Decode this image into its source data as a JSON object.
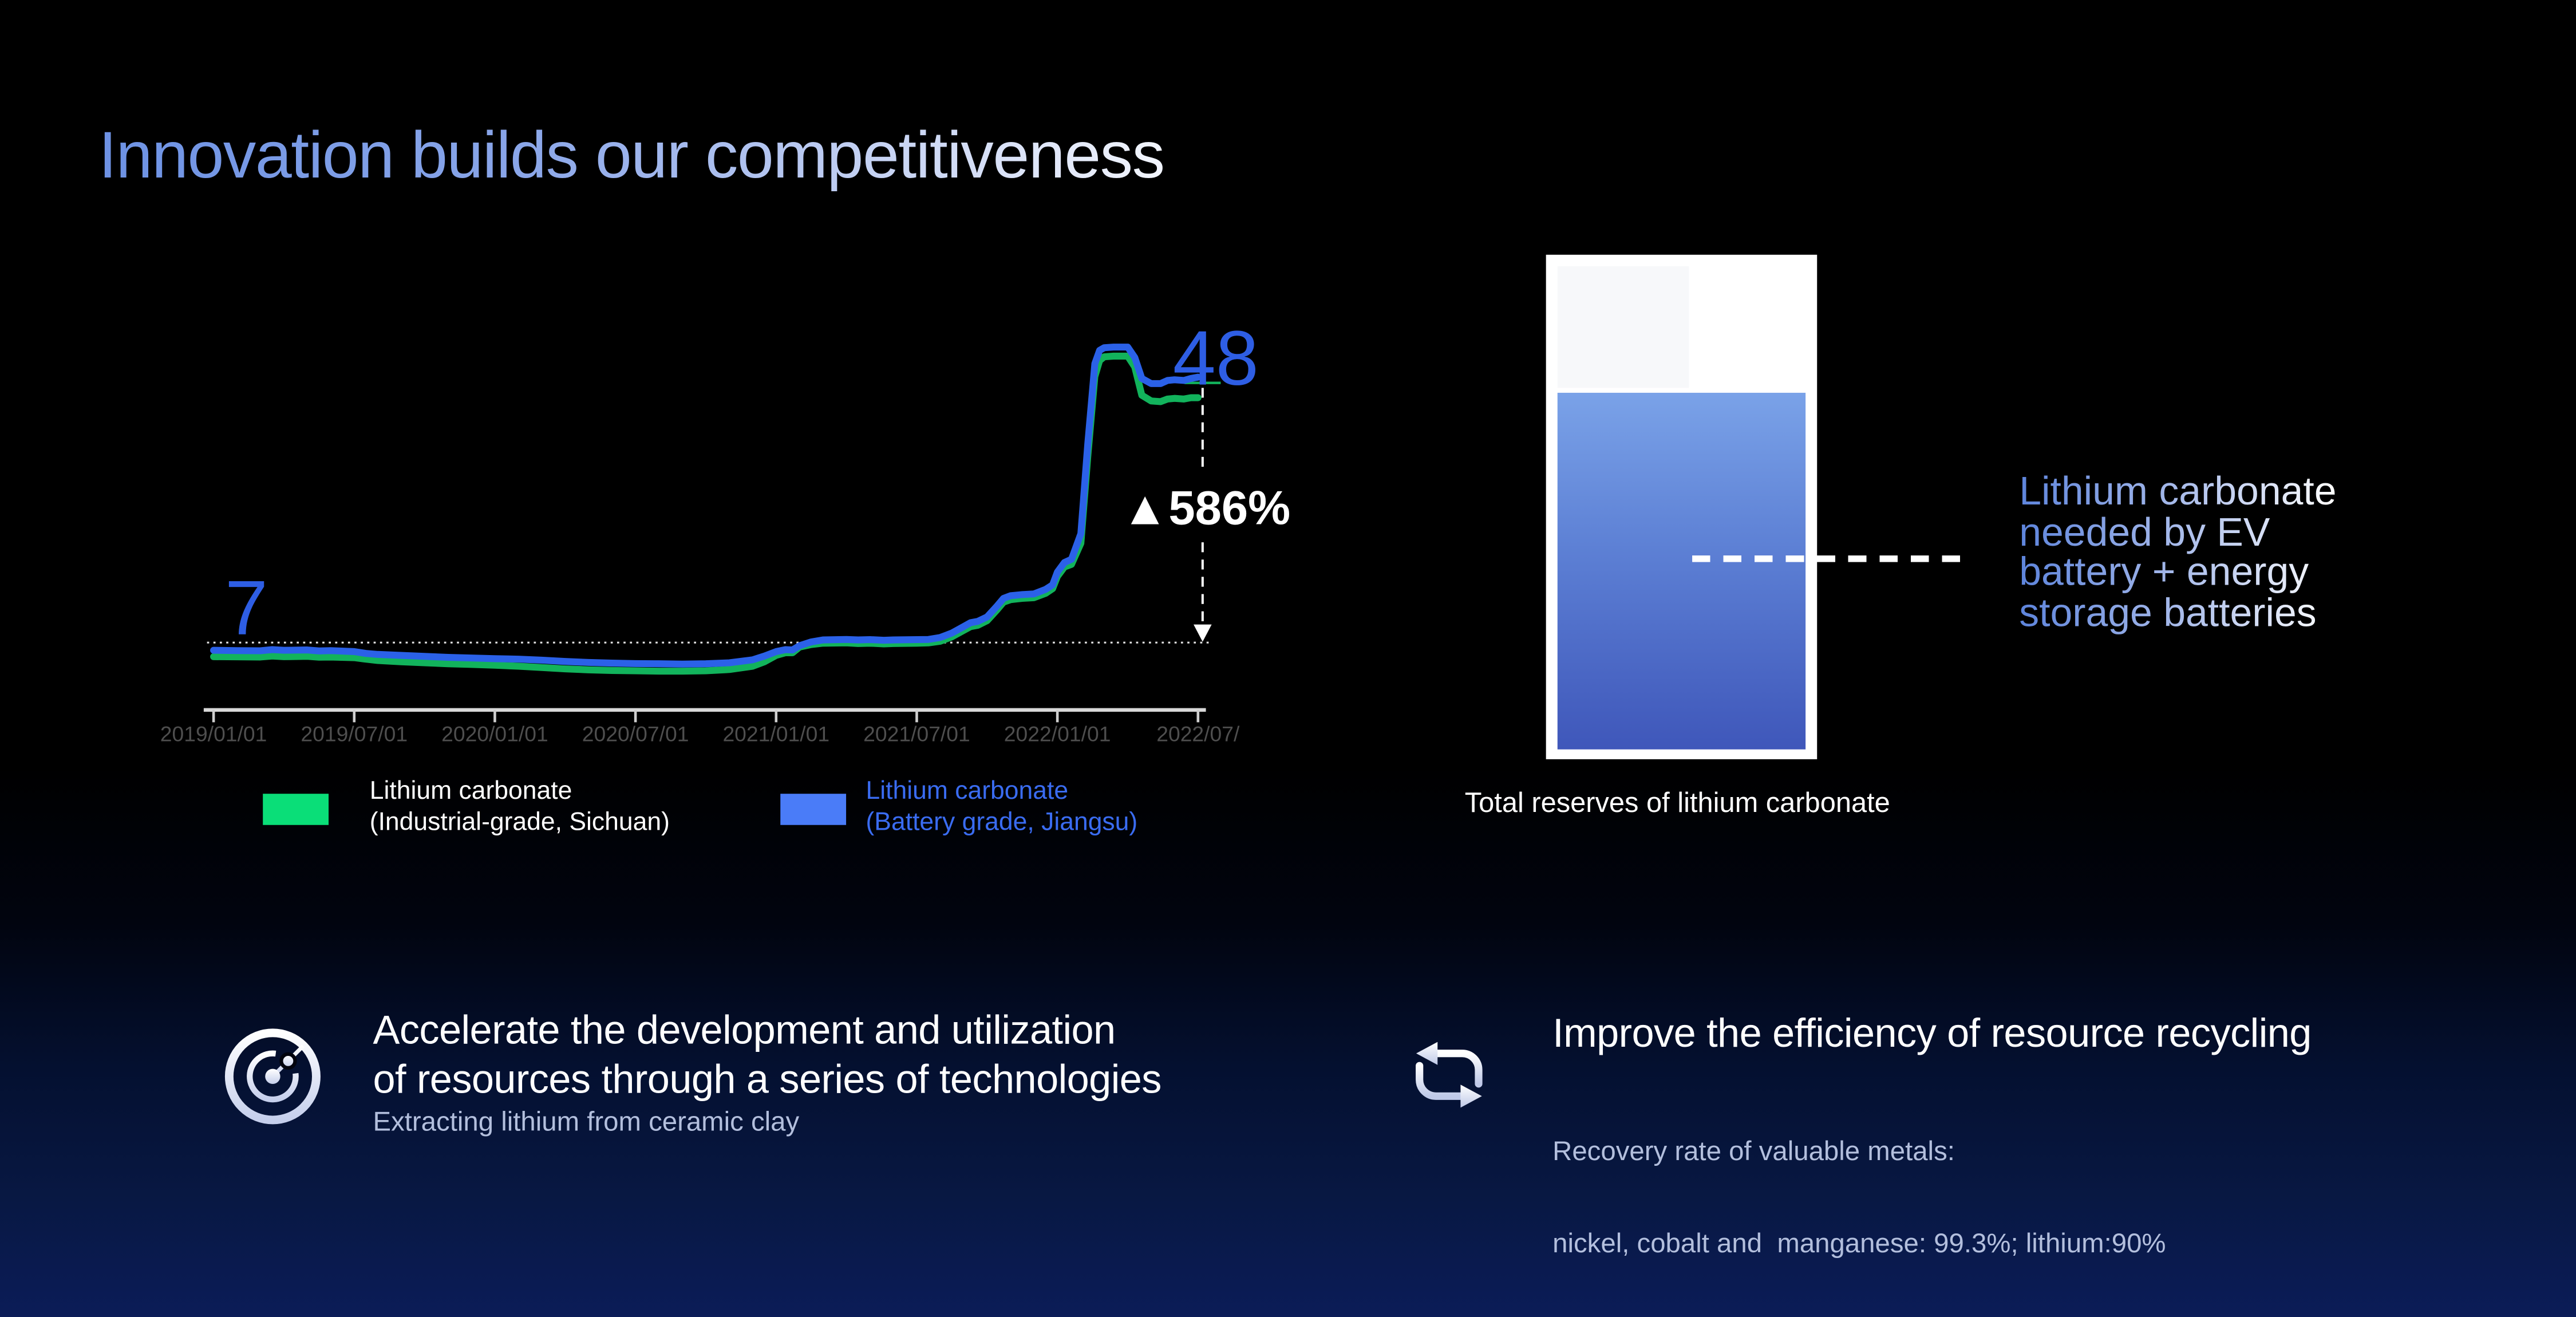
{
  "slide_title": "Innovation builds our competitiveness",
  "chart_data": {
    "type": "line",
    "x_tick_labels": [
      "2019/01/01",
      "2019/07/01",
      "2020/01/01",
      "2020/07/01",
      "2021/01/01",
      "2021/07/01",
      "2022/01/01",
      "2022/07/"
    ],
    "baseline_value": 7,
    "annotations": {
      "start": "7",
      "end": "48",
      "change": "▲586%"
    },
    "axis_color": "#d8d8d8",
    "series": [
      {
        "id": "series-industrial",
        "name": "Lithium carbonate (Industrial-grade, Sichuan)",
        "color": "#12b35c",
        "points": [
          [
            0,
            4.8
          ],
          [
            1,
            4.78
          ],
          [
            2,
            4.75
          ],
          [
            2.5,
            4.9
          ],
          [
            3,
            4.8
          ],
          [
            4,
            4.85
          ],
          [
            4.5,
            4.72
          ],
          [
            5,
            4.75
          ],
          [
            6,
            4.65
          ],
          [
            6.5,
            4.4
          ],
          [
            7,
            4.2
          ],
          [
            8,
            4.0
          ],
          [
            9,
            3.85
          ],
          [
            10,
            3.7
          ],
          [
            11,
            3.6
          ],
          [
            12,
            3.45
          ],
          [
            13,
            3.3
          ],
          [
            14,
            3.1
          ],
          [
            15,
            2.9
          ],
          [
            16,
            2.75
          ],
          [
            17,
            2.65
          ],
          [
            18,
            2.6
          ],
          [
            19,
            2.55
          ],
          [
            20,
            2.55
          ],
          [
            21,
            2.6
          ],
          [
            22,
            2.8
          ],
          [
            23,
            3.3
          ],
          [
            23.5,
            4.0
          ],
          [
            24,
            5.0
          ],
          [
            24.4,
            5.4
          ],
          [
            24.7,
            5.4
          ],
          [
            25,
            6.3
          ],
          [
            25.5,
            6.7
          ],
          [
            26,
            6.9
          ],
          [
            27,
            6.95
          ],
          [
            27.5,
            6.85
          ],
          [
            28,
            6.9
          ],
          [
            28.6,
            6.8
          ],
          [
            29,
            6.85
          ],
          [
            30,
            6.9
          ],
          [
            30.5,
            6.95
          ],
          [
            31,
            7.2
          ],
          [
            31.5,
            7.9
          ],
          [
            32,
            8.9
          ],
          [
            32.3,
            9.5
          ],
          [
            32.6,
            9.7
          ],
          [
            33,
            10.4
          ],
          [
            33.4,
            12.0
          ],
          [
            33.7,
            13.3
          ],
          [
            34,
            13.7
          ],
          [
            34.5,
            13.9
          ],
          [
            35,
            14.0
          ],
          [
            35.5,
            14.7
          ],
          [
            35.8,
            15.4
          ],
          [
            36,
            17.3
          ],
          [
            36.3,
            18.8
          ],
          [
            36.6,
            19.2
          ],
          [
            37,
            22.5
          ],
          [
            37.3,
            36.0
          ],
          [
            37.6,
            48.5
          ],
          [
            37.8,
            51.0
          ],
          [
            38,
            51.6
          ],
          [
            38.4,
            51.7
          ],
          [
            39,
            51.7
          ],
          [
            39.3,
            50.0
          ],
          [
            39.6,
            45.6
          ],
          [
            40,
            44.7
          ],
          [
            40.4,
            44.6
          ],
          [
            40.7,
            45.0
          ],
          [
            41,
            45.1
          ],
          [
            41.4,
            45.0
          ],
          [
            41.7,
            45.2
          ],
          [
            42,
            45.2
          ]
        ]
      },
      {
        "id": "series-battery",
        "name": "Lithium carbonate (Battery grade, Jiangsu)",
        "color": "#2b61e8",
        "points": [
          [
            0,
            5.8
          ],
          [
            1,
            5.75
          ],
          [
            2,
            5.72
          ],
          [
            2.5,
            5.9
          ],
          [
            3,
            5.8
          ],
          [
            4,
            5.85
          ],
          [
            4.5,
            5.7
          ],
          [
            5,
            5.75
          ],
          [
            6,
            5.6
          ],
          [
            6.5,
            5.3
          ],
          [
            7,
            5.15
          ],
          [
            8,
            5.0
          ],
          [
            9,
            4.85
          ],
          [
            10,
            4.7
          ],
          [
            11,
            4.6
          ],
          [
            12,
            4.5
          ],
          [
            13,
            4.4
          ],
          [
            14,
            4.25
          ],
          [
            15,
            4.05
          ],
          [
            16,
            3.9
          ],
          [
            17,
            3.8
          ],
          [
            18,
            3.72
          ],
          [
            19,
            3.68
          ],
          [
            20,
            3.65
          ],
          [
            21,
            3.7
          ],
          [
            22,
            3.85
          ],
          [
            23,
            4.3
          ],
          [
            23.5,
            4.9
          ],
          [
            24,
            5.6
          ],
          [
            24.4,
            5.9
          ],
          [
            24.7,
            5.85
          ],
          [
            25,
            6.5
          ],
          [
            25.5,
            7.1
          ],
          [
            26,
            7.4
          ],
          [
            27,
            7.5
          ],
          [
            27.5,
            7.4
          ],
          [
            28,
            7.45
          ],
          [
            28.6,
            7.35
          ],
          [
            29,
            7.4
          ],
          [
            30,
            7.45
          ],
          [
            30.5,
            7.5
          ],
          [
            31,
            7.8
          ],
          [
            31.5,
            8.5
          ],
          [
            32,
            9.5
          ],
          [
            32.3,
            10.1
          ],
          [
            32.6,
            10.3
          ],
          [
            33,
            11.0
          ],
          [
            33.4,
            12.6
          ],
          [
            33.7,
            13.9
          ],
          [
            34,
            14.3
          ],
          [
            34.5,
            14.5
          ],
          [
            35,
            14.6
          ],
          [
            35.5,
            15.3
          ],
          [
            35.8,
            16.0
          ],
          [
            36,
            18.0
          ],
          [
            36.3,
            19.5
          ],
          [
            36.6,
            20.0
          ],
          [
            37,
            24.0
          ],
          [
            37.3,
            38.0
          ],
          [
            37.6,
            50.5
          ],
          [
            37.8,
            52.6
          ],
          [
            38,
            53.0
          ],
          [
            38.4,
            53.1
          ],
          [
            39,
            53.1
          ],
          [
            39.3,
            51.5
          ],
          [
            39.6,
            48.2
          ],
          [
            40,
            47.4
          ],
          [
            40.4,
            47.4
          ],
          [
            40.7,
            47.9
          ],
          [
            41,
            48.0
          ],
          [
            41.4,
            47.9
          ],
          [
            41.7,
            48.2
          ],
          [
            42,
            48.4
          ]
        ]
      }
    ],
    "legend": [
      {
        "lines": [
          "Lithium carbonate",
          "(Industrial-grade, Sichuan)"
        ],
        "swatch_color": "#0ade78",
        "text_color": "#ffffff"
      },
      {
        "lines": [
          "Lithium carbonate",
          "(Battery grade, Jiangsu)"
        ],
        "swatch_color": "#4a7cf8",
        "text_color": "#3a6cf1"
      }
    ]
  },
  "reserve": {
    "caption": "Total reserves of lithium carbonate",
    "note_lines": [
      "Lithium carbonate",
      "needed by EV",
      "battery + energy",
      "storage batteries"
    ]
  },
  "highlights": [
    {
      "icon": "radar-target",
      "title_lines": [
        "Accelerate the development and utilization",
        "of resources through a series of technologies"
      ],
      "subtitle_lines": [
        "Extracting lithium from ceramic clay"
      ]
    },
    {
      "icon": "recycle-arrows",
      "title_lines": [
        "Improve the efficiency of resource recycling"
      ],
      "subtitle_lines": [
        "Recovery rate of valuable metals:",
        "nickel, cobalt and  manganese: 99.3%; lithium:90%"
      ]
    }
  ],
  "colors": {
    "annotation_blue": "#2e5ee4",
    "line_green": "#12b35c",
    "line_blue": "#2b61e8"
  }
}
